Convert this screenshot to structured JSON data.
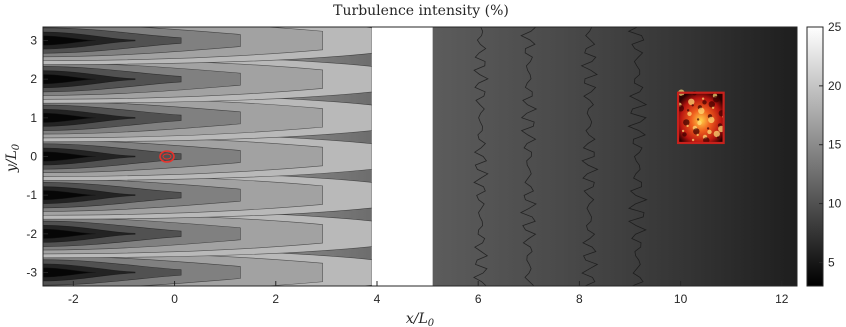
{
  "chart_data": {
    "type": "heatmap",
    "title": "Turbulence intensity (%)",
    "xlabel": "x/L",
    "xlabel_sub": "0",
    "ylabel": "y/L",
    "ylabel_sub": "0",
    "xlim": [
      -2.6,
      12.3
    ],
    "ylim": [
      -3.35,
      3.35
    ],
    "xticks": [
      -2,
      0,
      2,
      4,
      6,
      8,
      10,
      12
    ],
    "xtick_labels": [
      "-2",
      "0",
      "2",
      "4",
      "6",
      "8",
      "10",
      "12"
    ],
    "yticks": [
      -3,
      -2,
      -1,
      0,
      1,
      2,
      3
    ],
    "ytick_labels": [
      "-3",
      "-2",
      "-1",
      "0",
      "1",
      "2",
      "3"
    ],
    "colorbar": {
      "range": [
        3,
        25
      ],
      "ticks": [
        5,
        10,
        15,
        20,
        25
      ],
      "tick_labels": [
        "5",
        "10",
        "15",
        "20",
        "25"
      ],
      "colormap": "gray"
    },
    "near_field_region": {
      "x_range": [
        -2.6,
        3.9
      ],
      "jet_rows_y": [
        -3,
        -2,
        -1,
        0,
        1,
        2,
        3
      ],
      "core_intensity": 3,
      "shear_layer_intensity": 22,
      "far_edge_intensity": 12
    },
    "gap_region": {
      "x_range": [
        3.9,
        5.1
      ]
    },
    "far_field_region": {
      "x_range": [
        5.1,
        12.3
      ],
      "start_intensity": 11,
      "end_intensity": 4
    },
    "markers": [
      {
        "type": "ellipse",
        "x": -0.15,
        "y": 0.0,
        "color": "#e8312a"
      },
      {
        "type": "rectangle",
        "x_range": [
          9.95,
          10.85
        ],
        "y_range": [
          0.35,
          1.65
        ],
        "color": "#c8211c"
      }
    ],
    "grid": false
  }
}
